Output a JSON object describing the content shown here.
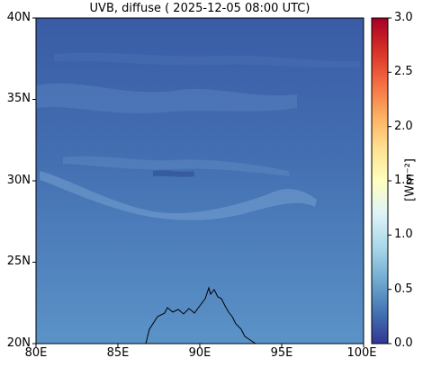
{
  "title": "UVB, diffuse ( 2025-12-05 08:00 UTC)",
  "lat_ticks": [
    "40N",
    "35N",
    "30N",
    "25N",
    "20N"
  ],
  "lon_ticks": [
    "80E",
    "85E",
    "90E",
    "95E",
    "100E"
  ],
  "colorbar": {
    "label": "[Wm⁻²]",
    "ticks": [
      "3.0",
      "2.5",
      "2.0",
      "1.5",
      "1.0",
      "0.5",
      "0.0"
    ],
    "range": [
      0.0,
      3.0
    ],
    "colormap": "RdYlBu_r"
  },
  "map_extent": {
    "lon": [
      80,
      100
    ],
    "lat": [
      20,
      40
    ]
  },
  "colors": {
    "field_top": "#3a5fa8",
    "field_bottom": "#5b92c6",
    "coast": "#000000"
  }
}
